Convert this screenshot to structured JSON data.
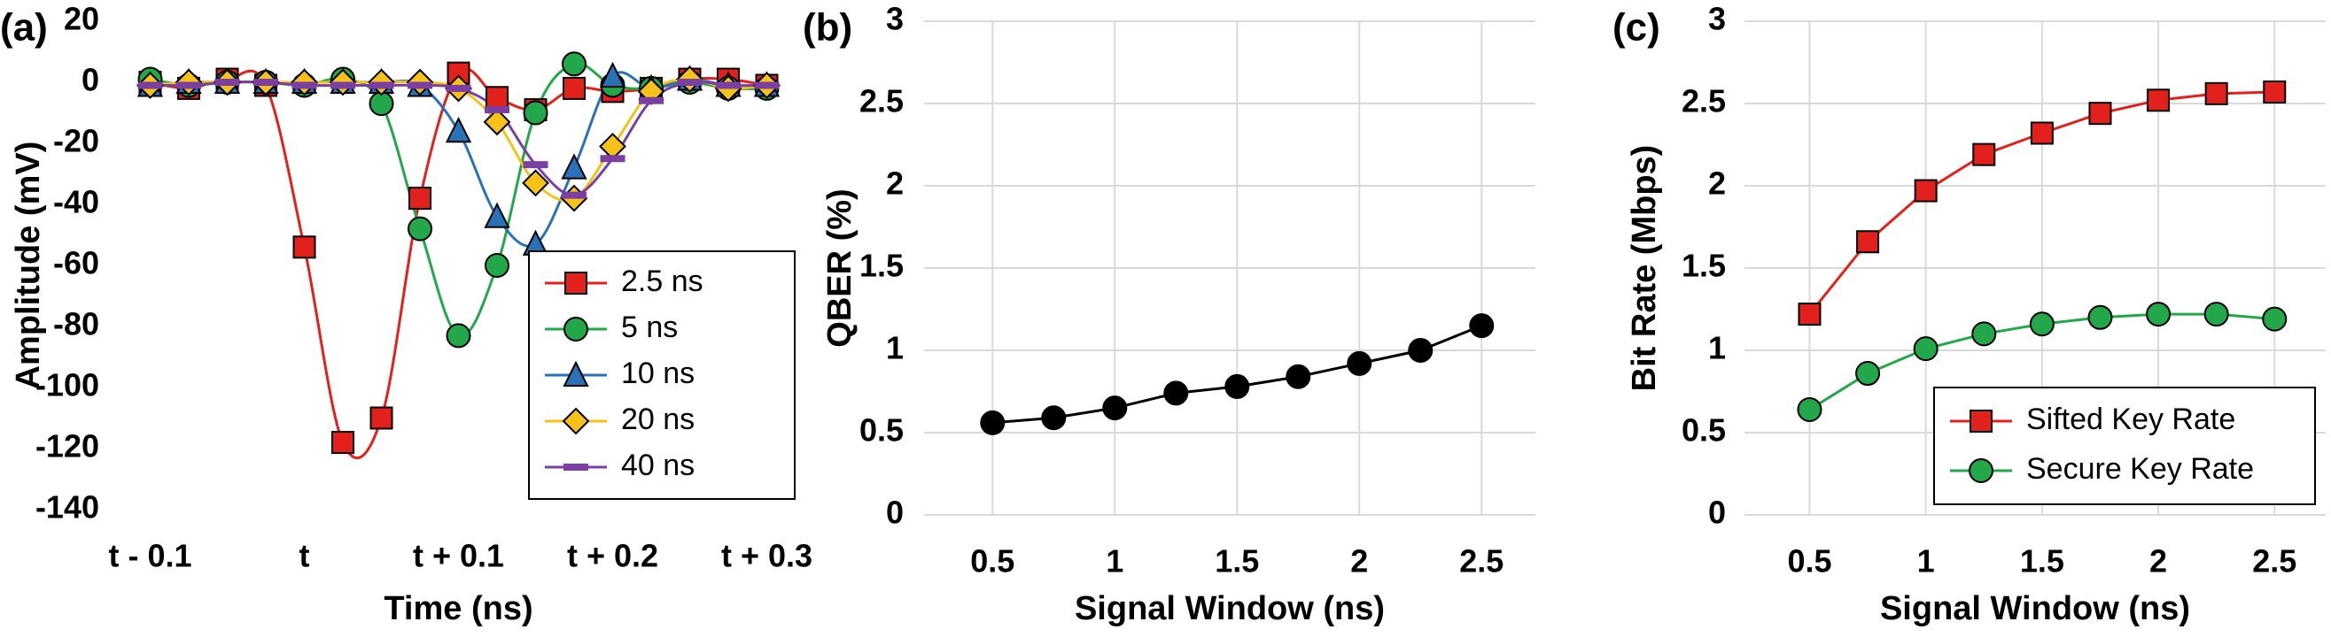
{
  "chart_data": [
    {
      "type": "line",
      "panel_label": "(a)",
      "xlabel": "Time (ns)",
      "ylabel": "Amplitude (mV)",
      "smooth": true,
      "grid": false,
      "legend": "lower right",
      "x": [
        -0.1,
        -0.075,
        -0.05,
        -0.025,
        0,
        0.025,
        0.05,
        0.075,
        0.1,
        0.125,
        0.15,
        0.175,
        0.2,
        0.225,
        0.25,
        0.275,
        0.3
      ],
      "xlim": [
        -0.125,
        0.325
      ],
      "xticks": [
        {
          "value": -0.1,
          "label": "t - 0.1"
        },
        {
          "value": 0,
          "label": "t"
        },
        {
          "value": 0.1,
          "label": "t + 0.1"
        },
        {
          "value": 0.2,
          "label": "t + 0.2"
        },
        {
          "value": 0.3,
          "label": "t + 0.3"
        }
      ],
      "ylim": [
        -140,
        20
      ],
      "yticks": [
        -140,
        -120,
        -100,
        -80,
        -60,
        -40,
        -20,
        0,
        20
      ],
      "series": [
        {
          "name": "2.5 ns",
          "color": "#e3211c",
          "marker": "square",
          "values": [
            0,
            -2,
            1,
            -1,
            -54,
            -118,
            -110,
            -38,
            3,
            -5,
            -9,
            -2,
            -3,
            -2,
            1,
            1,
            -1
          ]
        },
        {
          "name": "5 ns",
          "color": "#22a84a",
          "marker": "circle",
          "values": [
            1,
            -1,
            0,
            0,
            -1,
            1,
            -7,
            -48,
            -83,
            -60,
            -10,
            6,
            -1,
            -2,
            0,
            -2,
            -2
          ]
        },
        {
          "name": "10 ns",
          "color": "#2a72b8",
          "marker": "triangle",
          "values": [
            -1,
            0,
            0,
            0,
            0,
            0,
            0,
            -1,
            -16,
            -44,
            -53,
            -28,
            2,
            -2,
            1,
            -1,
            -1
          ]
        },
        {
          "name": "20 ns",
          "color": "#f6c21a",
          "marker": "diamond",
          "values": [
            -1,
            0,
            0,
            0,
            0,
            0,
            0,
            0,
            -2,
            -13,
            -33,
            -38,
            -21,
            -3,
            1,
            -2,
            -1
          ]
        },
        {
          "name": "40 ns",
          "color": "#7a3fa0",
          "marker": "dash",
          "values": [
            -1,
            -1,
            0,
            0,
            -1,
            -1,
            -1,
            -1,
            -2,
            -9,
            -27,
            -37,
            -25,
            -6,
            0,
            -1,
            -1
          ]
        }
      ]
    },
    {
      "type": "line",
      "panel_label": "(b)",
      "xlabel": "Signal Window (ns)",
      "ylabel": "QBER (%)",
      "smooth": false,
      "grid": true,
      "x": [
        0.5,
        0.75,
        1,
        1.25,
        1.5,
        1.75,
        2,
        2.25,
        2.5
      ],
      "xlim": [
        0.22,
        2.72
      ],
      "xticks": [
        0.5,
        1,
        1.5,
        2,
        2.5
      ],
      "ylim": [
        0,
        3
      ],
      "yticks": [
        0,
        0.5,
        1,
        1.5,
        2,
        2.5,
        3
      ],
      "series": [
        {
          "color": "#000000",
          "marker": "circle",
          "values": [
            0.56,
            0.59,
            0.65,
            0.74,
            0.78,
            0.84,
            0.92,
            1.0,
            1.15
          ]
        }
      ]
    },
    {
      "type": "line",
      "panel_label": "(c)",
      "xlabel": "Signal Window (ns)",
      "ylabel": "Bit Rate (Mbps)",
      "smooth": false,
      "grid": true,
      "legend": "lower right",
      "x": [
        0.5,
        0.75,
        1,
        1.25,
        1.5,
        1.75,
        2,
        2.25,
        2.5
      ],
      "xlim": [
        0.22,
        2.72
      ],
      "xticks": [
        0.5,
        1,
        1.5,
        2,
        2.5
      ],
      "ylim": [
        0,
        3
      ],
      "yticks": [
        0,
        0.5,
        1,
        1.5,
        2,
        2.5,
        3
      ],
      "series": [
        {
          "name": "Sifted Key Rate",
          "color": "#e3211c",
          "marker": "square",
          "values": [
            1.22,
            1.66,
            1.97,
            2.19,
            2.32,
            2.44,
            2.52,
            2.56,
            2.57
          ]
        },
        {
          "name": "Secure Key Rate",
          "color": "#22a84a",
          "marker": "circle",
          "values": [
            0.64,
            0.86,
            1.01,
            1.1,
            1.16,
            1.2,
            1.22,
            1.22,
            1.19
          ]
        }
      ]
    }
  ]
}
